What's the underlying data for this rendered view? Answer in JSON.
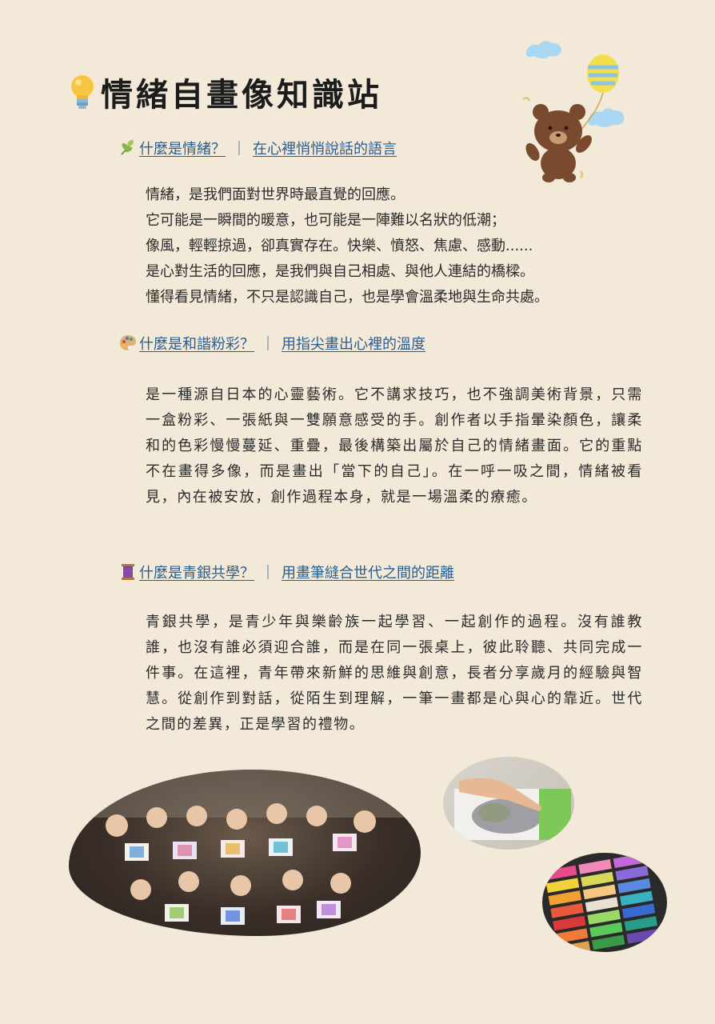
{
  "title": "情緒自畫像知識站",
  "sections": [
    {
      "question": "什麼是情緒？",
      "tagline": "在心裡悄悄說話的語言",
      "lines": [
        "情緒，是我們面對世界時最直覺的回應。",
        "它可能是一瞬間的暖意，也可能是一陣難以名狀的低潮；",
        "像風，輕輕掠過，卻真實存在。快樂、憤怒、焦慮、感動......",
        "是心對生活的回應，是我們與自己相處、與他人連結的橋樑。",
        "懂得看見情緒，不只是認識自己，也是學會溫柔地與生命共處。"
      ]
    },
    {
      "question": "什麼是和諧粉彩？",
      "tagline": "用指尖畫出心裡的溫度",
      "body": "是一種源自日本的心靈藝術。它不講求技巧，也不強調美術背景，只需一盒粉彩、一張紙與一雙願意感受的手。創作者以手指暈染顏色，讓柔和的色彩慢慢蔓延、重疊，最後構築出屬於自己的情緒畫面。它的重點不在畫得多像，而是畫出「當下的自己」。在一呼一吸之間，情緒被看見，內在被安放，創作過程本身，就是一場溫柔的療癒。"
    },
    {
      "question": "什麼是青銀共學？",
      "tagline": "用畫筆縫合世代之間的距離",
      "body": "青銀共學，是青少年與樂齡族一起學習、一起創作的過程。沒有誰教誰，也沒有誰必須迎合誰，而是在同一張桌上，彼此聆聽、共同完成一件事。在這裡，青年帶來新鮮的思維與創意，長者分享歲月的經驗與智慧。從創作到對話，從陌生到理解，一筆一畫都是心與心的靠近。世代之間的差異，正是學習的禮物。"
    }
  ],
  "section_separator": "｜",
  "icons": [
    "lightbulb-icon",
    "leaf-icon",
    "palette-icon",
    "thread-spool-icon",
    "bear-balloon-illustration"
  ],
  "colors": {
    "background": "#f3e9d9",
    "heading_link": "#2c5d8f",
    "text": "#2b2b2b"
  }
}
